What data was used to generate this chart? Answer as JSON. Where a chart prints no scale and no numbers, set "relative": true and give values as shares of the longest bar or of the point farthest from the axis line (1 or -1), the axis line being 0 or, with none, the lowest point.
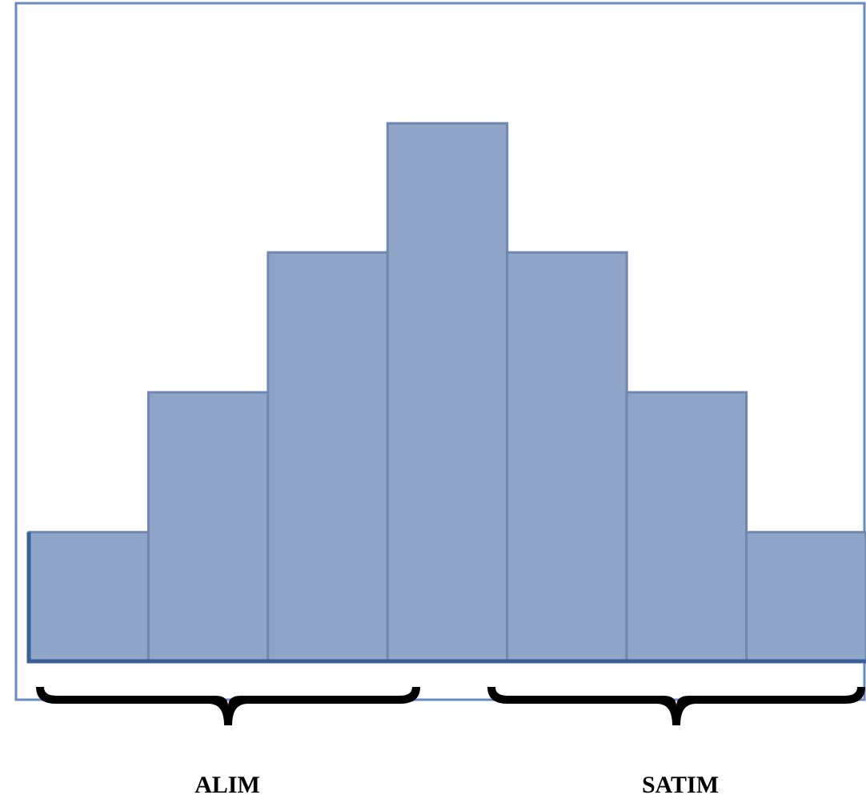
{
  "chart_data": {
    "type": "bar",
    "relative": true,
    "categories": [
      null,
      null,
      null,
      null,
      null,
      null,
      null
    ],
    "values": [
      0.24,
      0.5,
      0.76,
      1,
      0.76,
      0.5,
      0.24
    ],
    "color": "#8ea5c8",
    "annotations": [
      "ALIM",
      "SATIM"
    ]
  }
}
